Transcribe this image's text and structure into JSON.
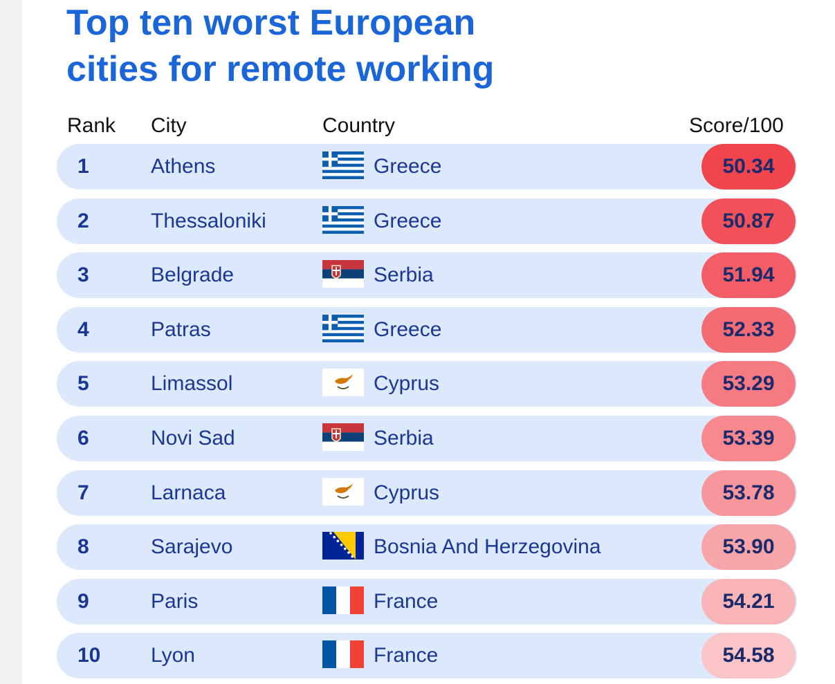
{
  "title_lines": [
    "Top ten worst European",
    "cities for remote working"
  ],
  "columns": {
    "rank": "Rank",
    "city": "City",
    "country": "Country",
    "score": "Score/100"
  },
  "chart_data": {
    "type": "table",
    "title": "Top ten worst European cities for remote working",
    "columns": [
      "Rank",
      "City",
      "Country",
      "Score/100"
    ],
    "rows": [
      {
        "rank": "1",
        "city": "Athens",
        "country": "Greece",
        "flag": "greece-flag-icon",
        "score": "50.34",
        "color": "#f1454d"
      },
      {
        "rank": "2",
        "city": "Thessaloniki",
        "country": "Greece",
        "flag": "greece-flag-icon",
        "score": "50.87",
        "color": "#f2515a"
      },
      {
        "rank": "3",
        "city": "Belgrade",
        "country": "Serbia",
        "flag": "serbia-flag-icon",
        "score": "51.94",
        "color": "#f35e66"
      },
      {
        "rank": "4",
        "city": "Patras",
        "country": "Greece",
        "flag": "greece-flag-icon",
        "score": "52.33",
        "color": "#f46c73"
      },
      {
        "rank": "5",
        "city": "Limassol",
        "country": "Cyprus",
        "flag": "cyprus-flag-icon",
        "score": "53.29",
        "color": "#f57a81"
      },
      {
        "rank": "6",
        "city": "Novi Sad",
        "country": "Serbia",
        "flag": "serbia-flag-icon",
        "score": "53.39",
        "color": "#f6888e"
      },
      {
        "rank": "7",
        "city": "Larnaca",
        "country": "Cyprus",
        "flag": "cyprus-flag-icon",
        "score": "53.78",
        "color": "#f7979c"
      },
      {
        "rank": "8",
        "city": "Sarajevo",
        "country": "Bosnia And Herzegovina",
        "flag": "bosnia-flag-icon",
        "score": "53.90",
        "color": "#f8a5aa"
      },
      {
        "rank": "9",
        "city": "Paris",
        "country": "France",
        "flag": "france-flag-icon",
        "score": "54.21",
        "color": "#f9b4b7"
      },
      {
        "rank": "10",
        "city": "Lyon",
        "country": "France",
        "flag": "france-flag-icon",
        "score": "54.58",
        "color": "#fbc4c6"
      }
    ]
  }
}
